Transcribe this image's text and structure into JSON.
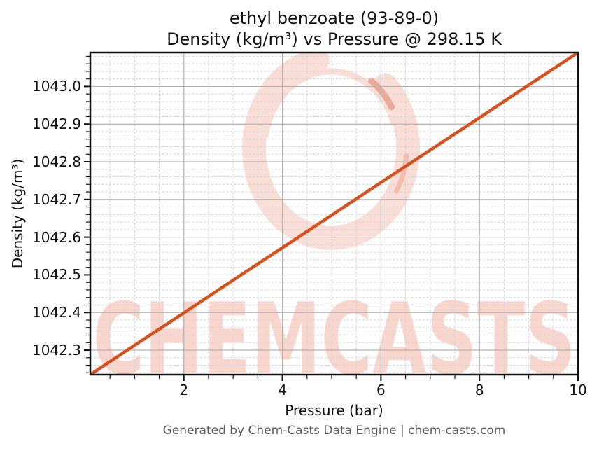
{
  "chart_data": {
    "type": "line",
    "title": "ethyl benzoate (93-89-0)",
    "subtitle": "Density (kg/m³) vs Pressure @ 298.15 K",
    "xlabel": "Pressure (bar)",
    "ylabel": "Density (kg/m³)",
    "xlim": [
      0.1,
      10.0
    ],
    "ylim": [
      1042.235,
      1043.09
    ],
    "xticks": {
      "values": [
        2,
        4,
        6,
        8,
        10
      ],
      "labels": [
        "2",
        "4",
        "6",
        "8",
        "10"
      ],
      "minor_step": 0.5
    },
    "yticks": {
      "values": [
        1042.3,
        1042.4,
        1042.5,
        1042.6,
        1042.7,
        1042.8,
        1042.9,
        1043.0
      ],
      "labels": [
        "1042.3",
        "1042.4",
        "1042.5",
        "1042.6",
        "1042.7",
        "1042.8",
        "1042.9",
        "1043.0"
      ],
      "minor_step": 0.02
    },
    "grid": {
      "major": true,
      "minor": true,
      "major_color": "#b3b3b3",
      "minor_color": "#d2d2d2"
    },
    "axis_color": "#111111",
    "legend": null,
    "series": [
      {
        "name": "Density",
        "color": "#d5521f",
        "x": [
          0.1,
          1,
          2,
          3,
          4,
          5,
          6,
          7,
          8,
          9,
          10
        ],
        "y": [
          1042.235,
          1042.313,
          1042.399,
          1042.486,
          1042.572,
          1042.658,
          1042.745,
          1042.831,
          1042.917,
          1043.004,
          1043.09
        ]
      }
    ],
    "watermark": {
      "text": "CHEMCASTS",
      "text_color": "#f8d6cd",
      "logo": "chemcasts-brush-circle",
      "logo_color": "#f9ded7",
      "logo_accent_color": "#eba897",
      "logo_accent2_color": "#f3bcab"
    }
  },
  "footer": {
    "text": "Generated by Chem-Casts Data Engine | chem-casts.com",
    "color": "#5a5a5a"
  }
}
